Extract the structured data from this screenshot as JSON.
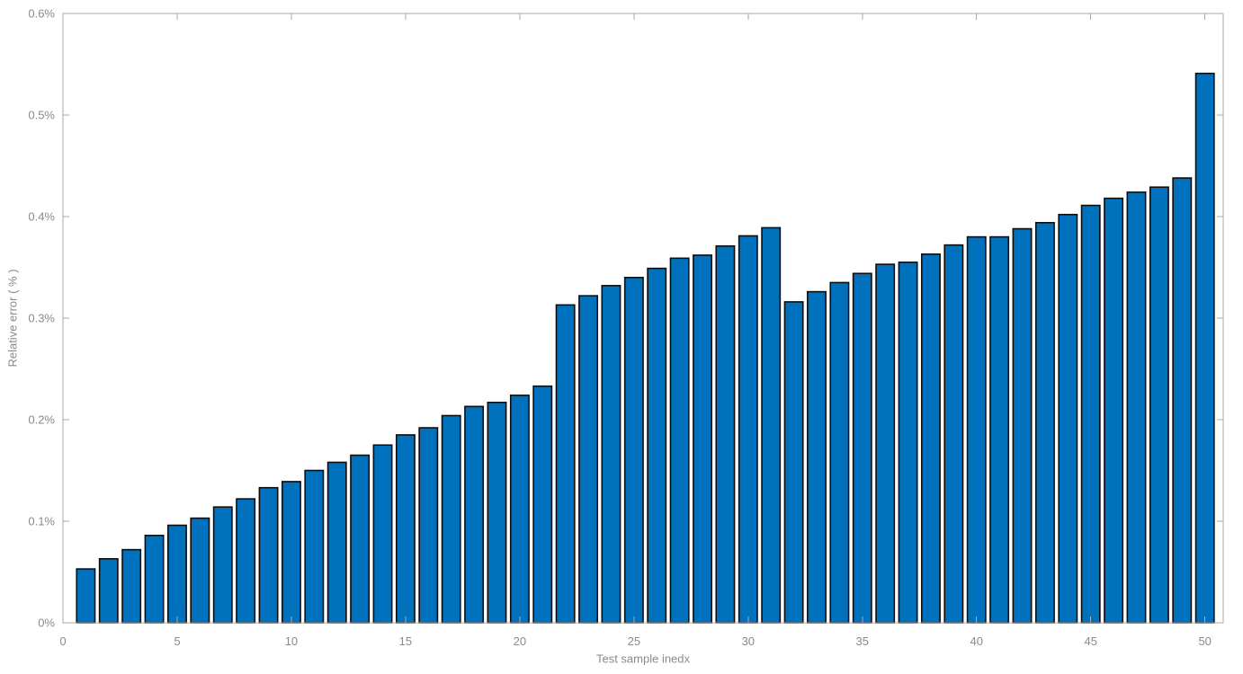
{
  "figure": {
    "background": "#ffffff"
  },
  "chart_data": {
    "type": "bar",
    "title": "",
    "xlabel": "Test sample inedx",
    "ylabel": "Relative error ( % )",
    "x": [
      1,
      2,
      3,
      4,
      5,
      6,
      7,
      8,
      9,
      10,
      11,
      12,
      13,
      14,
      15,
      16,
      17,
      18,
      19,
      20,
      21,
      22,
      23,
      24,
      25,
      26,
      27,
      28,
      29,
      30,
      31,
      32,
      33,
      34,
      35,
      36,
      37,
      38,
      39,
      40,
      41,
      42,
      43,
      44,
      45,
      46,
      47,
      48,
      49,
      50
    ],
    "values": [
      0.053,
      0.063,
      0.072,
      0.086,
      0.096,
      0.103,
      0.114,
      0.122,
      0.133,
      0.139,
      0.15,
      0.158,
      0.165,
      0.175,
      0.185,
      0.192,
      0.204,
      0.213,
      0.217,
      0.224,
      0.233,
      0.313,
      0.322,
      0.332,
      0.34,
      0.349,
      0.359,
      0.362,
      0.371,
      0.381,
      0.389,
      0.316,
      0.326,
      0.335,
      0.344,
      0.353,
      0.355,
      0.363,
      0.372,
      0.38,
      0.38,
      0.388,
      0.394,
      0.402,
      0.411,
      0.418,
      0.424,
      0.429,
      0.438,
      0.541
    ],
    "xlim": [
      0,
      50.8
    ],
    "ylim": [
      0,
      0.6
    ],
    "x_ticks": [
      0,
      5,
      10,
      15,
      20,
      25,
      30,
      35,
      40,
      45,
      50
    ],
    "x_tick_labels": [
      "0",
      "5",
      "10",
      "15",
      "20",
      "25",
      "30",
      "35",
      "40",
      "45",
      "50"
    ],
    "y_ticks": [
      0,
      0.1,
      0.2,
      0.3,
      0.4,
      0.5,
      0.6
    ],
    "y_tick_labels": [
      "0%",
      "0.1%",
      "0.2%",
      "0.3%",
      "0.4%",
      "0.5%",
      "0.6%"
    ],
    "bar_color": "#0072BD",
    "bar_edge_color": "#0d0d0d",
    "axis_color": "#a9a9a9",
    "text_color": "#8a8a8a",
    "bar_width_fraction": 0.8,
    "grid": false,
    "legend": null,
    "box": true
  }
}
